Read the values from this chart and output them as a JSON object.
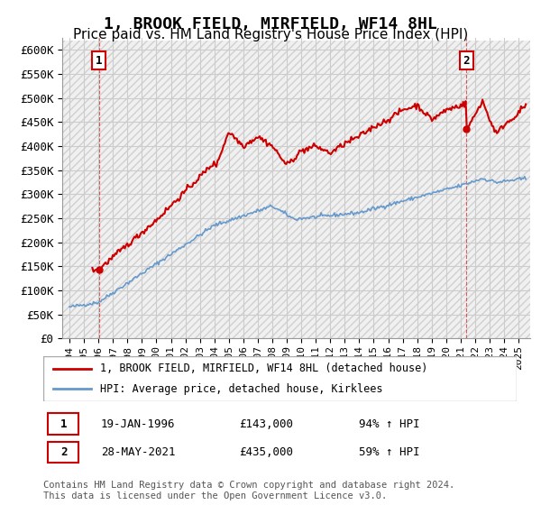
{
  "title": "1, BROOK FIELD, MIRFIELD, WF14 8HL",
  "subtitle": "Price paid vs. HM Land Registry's House Price Index (HPI)",
  "ylim": [
    0,
    620000
  ],
  "yticks": [
    0,
    50000,
    100000,
    150000,
    200000,
    250000,
    300000,
    350000,
    400000,
    450000,
    500000,
    550000,
    600000
  ],
  "ytick_labels": [
    "£0",
    "£50K",
    "£100K",
    "£150K",
    "£200K",
    "£250K",
    "£300K",
    "£350K",
    "£400K",
    "£450K",
    "£500K",
    "£550K",
    "£600K"
  ],
  "purchase1_date": 1996.05,
  "purchase1_price": 143000,
  "purchase2_date": 2021.41,
  "purchase2_price": 435000,
  "legend_line1": "1, BROOK FIELD, MIRFIELD, WF14 8HL (detached house)",
  "legend_line2": "HPI: Average price, detached house, Kirklees",
  "annot1_date": "19-JAN-1996",
  "annot1_price": "£143,000",
  "annot1_hpi": "94% ↑ HPI",
  "annot2_date": "28-MAY-2021",
  "annot2_price": "£435,000",
  "annot2_hpi": "59% ↑ HPI",
  "footer": "Contains HM Land Registry data © Crown copyright and database right 2024.\nThis data is licensed under the Open Government Licence v3.0.",
  "price_color": "#cc0000",
  "hpi_color": "#6699cc",
  "grid_color": "#cccccc",
  "title_fontsize": 13,
  "subtitle_fontsize": 11,
  "tick_fontsize": 9
}
